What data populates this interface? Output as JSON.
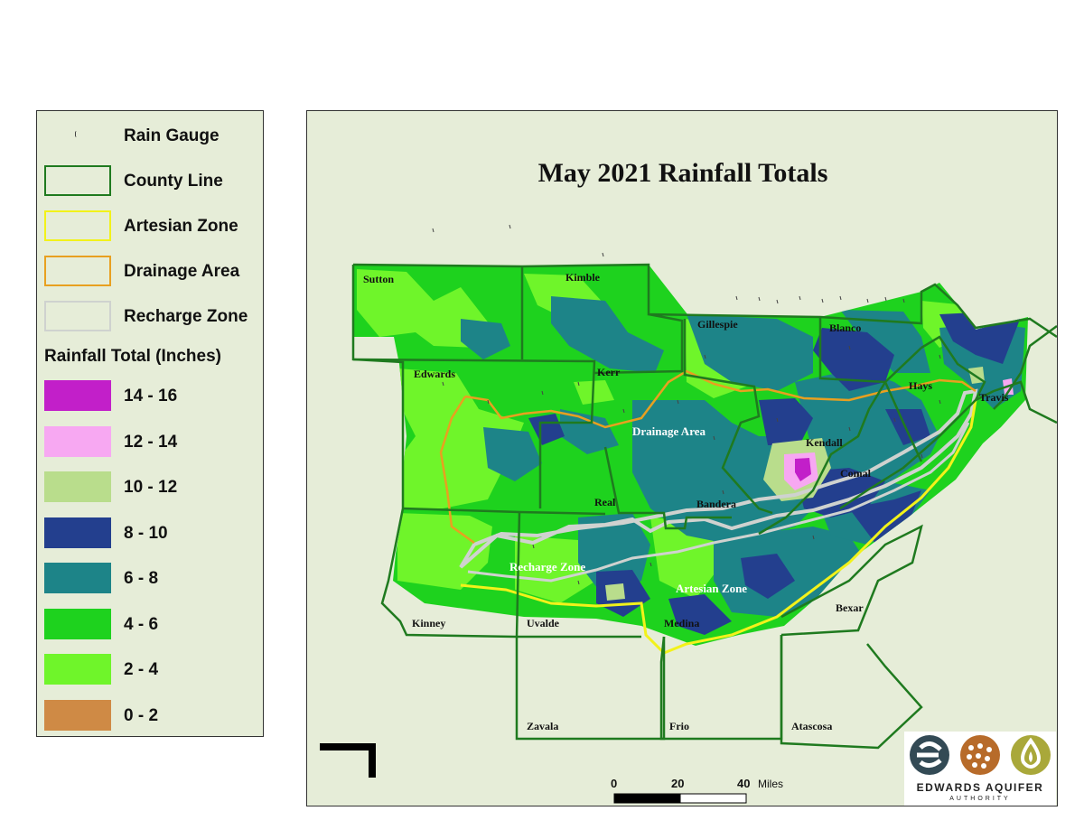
{
  "map": {
    "title": "May 2021 Rainfall Totals",
    "counties": [
      "Sutton",
      "Kimble",
      "Gillespie",
      "Blanco",
      "Edwards",
      "Kerr",
      "Hays",
      "Travis",
      "Kendall",
      "Comal",
      "Real",
      "Bandera",
      "Kinney",
      "Uvalde",
      "Medina",
      "Bexar",
      "Zavala",
      "Frio",
      "Atascosa"
    ],
    "zones": {
      "drainage": "Drainage Area",
      "recharge": "Recharge Zone",
      "artesian": "Artesian Zone"
    },
    "scale": {
      "ticks": [
        "0",
        "20",
        "40"
      ],
      "unit": "Miles"
    },
    "colors": {
      "background": "#e6edd8",
      "county_line": "#1f7a1f",
      "artesian_line": "#f2f21a",
      "drainage_line": "#e8a020",
      "recharge_line": "#cfd2cf"
    }
  },
  "legend": {
    "symbols": [
      {
        "label": "Rain Gauge",
        "type": "gauge"
      },
      {
        "label": "County Line",
        "color": "#1f7a1f"
      },
      {
        "label": "Artesian Zone",
        "color": "#f2f21a"
      },
      {
        "label": "Drainage Area",
        "color": "#e8a020"
      },
      {
        "label": "Recharge Zone",
        "color": "#cfd2cf"
      }
    ],
    "rainfall_title": "Rainfall Total (Inches)",
    "classes": [
      {
        "label": "14 - 16",
        "color": "#c21fc9"
      },
      {
        "label": "12 - 14",
        "color": "#f7a8f2"
      },
      {
        "label": "10 - 12",
        "color": "#b9dd8c"
      },
      {
        "label": "8 - 10",
        "color": "#233f8e"
      },
      {
        "label": "6 - 8",
        "color": "#1d8488"
      },
      {
        "label": "4 - 6",
        "color": "#1ed21e"
      },
      {
        "label": "2 - 4",
        "color": "#6ff52a"
      },
      {
        "label": "0 - 2",
        "color": "#cf8a45"
      }
    ]
  },
  "logo": {
    "name": "EDWARDS AQUIFER",
    "sub": "AUTHORITY"
  }
}
